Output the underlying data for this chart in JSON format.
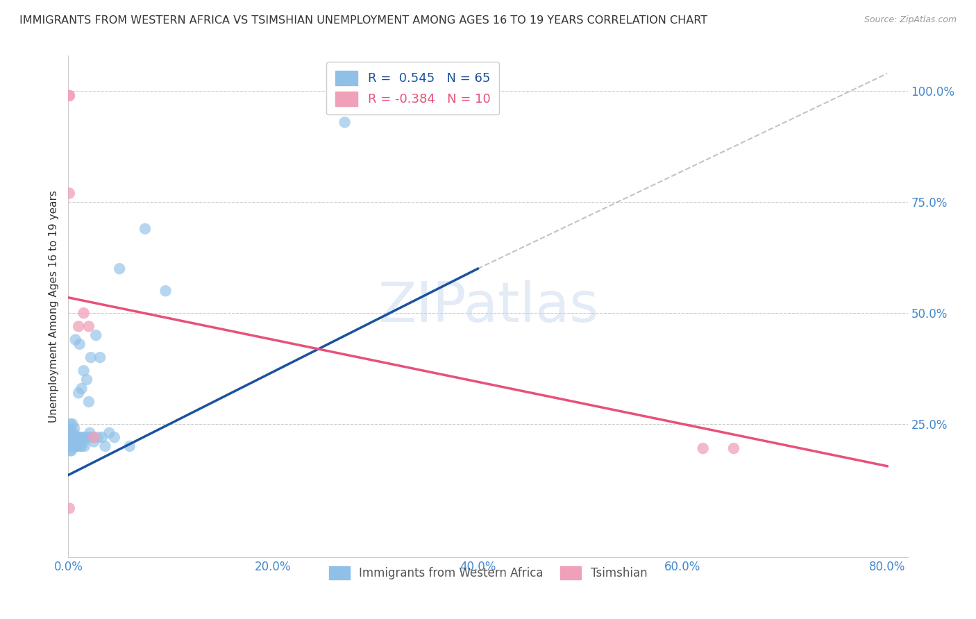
{
  "title": "IMMIGRANTS FROM WESTERN AFRICA VS TSIMSHIAN UNEMPLOYMENT AMONG AGES 16 TO 19 YEARS CORRELATION CHART",
  "source": "Source: ZipAtlas.com",
  "ylabel": "Unemployment Among Ages 16 to 19 years",
  "xlim": [
    0.0,
    0.82
  ],
  "ylim": [
    -0.05,
    1.08
  ],
  "xtick_labels": [
    "0.0%",
    "20.0%",
    "40.0%",
    "60.0%",
    "80.0%"
  ],
  "xtick_values": [
    0.0,
    0.2,
    0.4,
    0.6,
    0.8
  ],
  "ytick_labels": [
    "25.0%",
    "50.0%",
    "75.0%",
    "100.0%"
  ],
  "ytick_values": [
    0.25,
    0.5,
    0.75,
    1.0
  ],
  "blue_color": "#90C0E8",
  "pink_color": "#F0A0B8",
  "blue_line_color": "#1A52A0",
  "pink_line_color": "#E8507A",
  "R_blue": 0.545,
  "N_blue": 65,
  "R_pink": -0.384,
  "N_pink": 10,
  "legend_label_blue": "Immigrants from Western Africa",
  "legend_label_pink": "Tsimshian",
  "watermark": "ZIPatlas",
  "blue_scatter_x": [
    0.001,
    0.001,
    0.001,
    0.001,
    0.001,
    0.002,
    0.002,
    0.002,
    0.002,
    0.002,
    0.002,
    0.003,
    0.003,
    0.003,
    0.003,
    0.004,
    0.004,
    0.004,
    0.004,
    0.005,
    0.005,
    0.005,
    0.006,
    0.006,
    0.006,
    0.007,
    0.007,
    0.007,
    0.008,
    0.008,
    0.008,
    0.009,
    0.009,
    0.01,
    0.01,
    0.011,
    0.011,
    0.012,
    0.012,
    0.013,
    0.013,
    0.014,
    0.015,
    0.015,
    0.016,
    0.017,
    0.018,
    0.019,
    0.02,
    0.021,
    0.022,
    0.023,
    0.025,
    0.027,
    0.029,
    0.031,
    0.033,
    0.036,
    0.04,
    0.045,
    0.05,
    0.06,
    0.075,
    0.095,
    0.27
  ],
  "blue_scatter_y": [
    0.2,
    0.21,
    0.22,
    0.23,
    0.24,
    0.19,
    0.2,
    0.21,
    0.22,
    0.23,
    0.25,
    0.19,
    0.2,
    0.21,
    0.22,
    0.2,
    0.21,
    0.22,
    0.25,
    0.2,
    0.21,
    0.23,
    0.2,
    0.22,
    0.24,
    0.2,
    0.21,
    0.44,
    0.2,
    0.21,
    0.22,
    0.2,
    0.21,
    0.22,
    0.32,
    0.21,
    0.43,
    0.2,
    0.22,
    0.2,
    0.33,
    0.22,
    0.21,
    0.37,
    0.2,
    0.22,
    0.35,
    0.22,
    0.3,
    0.23,
    0.4,
    0.22,
    0.21,
    0.45,
    0.22,
    0.4,
    0.22,
    0.2,
    0.23,
    0.22,
    0.6,
    0.2,
    0.69,
    0.55,
    0.93
  ],
  "pink_scatter_x": [
    0.001,
    0.001,
    0.001,
    0.01,
    0.015,
    0.02,
    0.62,
    0.65,
    0.001,
    0.025
  ],
  "pink_scatter_y": [
    0.99,
    0.99,
    0.77,
    0.47,
    0.5,
    0.47,
    0.195,
    0.195,
    0.06,
    0.22
  ],
  "blue_line_x0": 0.0,
  "blue_line_y0": 0.135,
  "blue_line_x1": 0.4,
  "blue_line_y1": 0.6,
  "pink_line_x0": 0.0,
  "pink_line_y0": 0.535,
  "pink_line_x1": 0.8,
  "pink_line_y1": 0.155,
  "dash_line_x0": 0.4,
  "dash_line_y0": 0.6,
  "dash_line_x1": 0.8,
  "dash_line_y1": 1.04
}
